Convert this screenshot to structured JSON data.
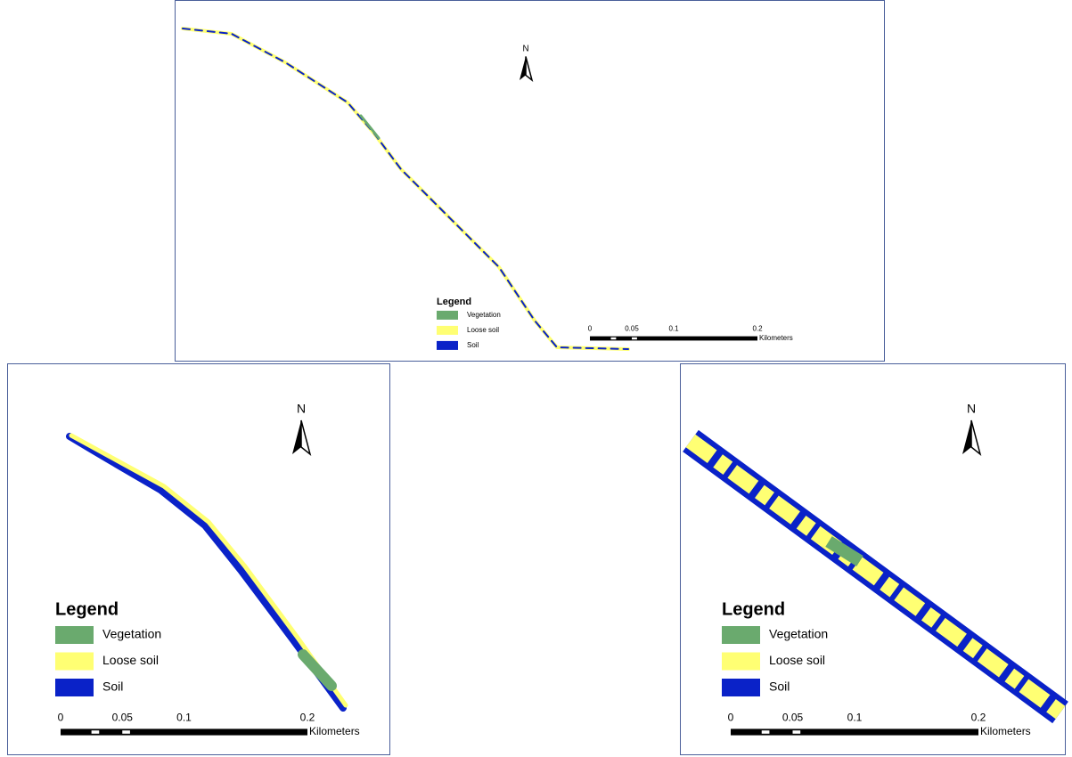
{
  "panels": [
    {
      "north": "N",
      "legend": {
        "title": "Legend",
        "items": [
          "Vegetation",
          "Loose soil",
          "Soil"
        ]
      },
      "scale": {
        "ticks": [
          "0",
          "0.05",
          "0.1",
          "0.2"
        ],
        "unit": "Kilometers"
      }
    },
    {
      "north": "N",
      "legend": {
        "title": "Legend",
        "items": [
          "Vegetation",
          "Loose soil",
          "Soil"
        ]
      },
      "scale": {
        "ticks": [
          "0",
          "0.05",
          "0.1",
          "0.2"
        ],
        "unit": "Kilometers"
      }
    },
    {
      "north": "N",
      "legend": {
        "title": "Legend",
        "items": [
          "Vegetation",
          "Loose soil",
          "Soil"
        ]
      },
      "scale": {
        "ticks": [
          "0",
          "0.05",
          "0.1",
          "0.2"
        ],
        "unit": "Kilometers"
      }
    }
  ]
}
